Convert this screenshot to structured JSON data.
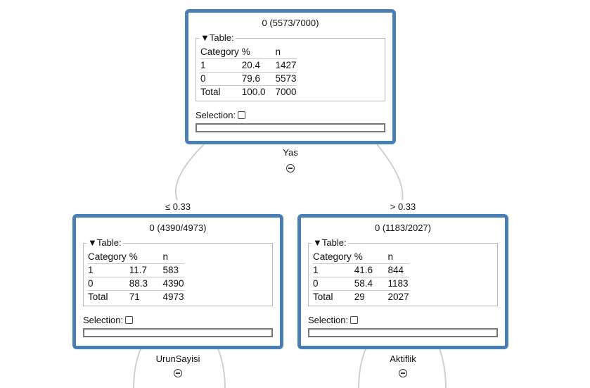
{
  "tree": {
    "table_legend": "▼Table:",
    "columns": [
      "Category",
      "%",
      "n"
    ],
    "selection_label": "Selection:",
    "root": {
      "title": "0 (5573/7000)",
      "rows": [
        {
          "category": "1",
          "pct": "20.4",
          "n": "1427"
        },
        {
          "category": "0",
          "pct": "79.6",
          "n": "5573"
        },
        {
          "category": "Total",
          "pct": "100.0",
          "n": "7000"
        }
      ],
      "split_variable": "Yas"
    },
    "left": {
      "edge_label": "≤ 0.33",
      "title": "0 (4390/4973)",
      "rows": [
        {
          "category": "1",
          "pct": "11.7",
          "n": "583"
        },
        {
          "category": "0",
          "pct": "88.3",
          "n": "4390"
        },
        {
          "category": "Total",
          "pct": "71",
          "n": "4973"
        }
      ],
      "split_variable": "UrunSayisi"
    },
    "right": {
      "edge_label": "> 0.33",
      "title": "0 (1183/2027)",
      "rows": [
        {
          "category": "1",
          "pct": "41.6",
          "n": "844"
        },
        {
          "category": "0",
          "pct": "58.4",
          "n": "1183"
        },
        {
          "category": "Total",
          "pct": "29",
          "n": "2027"
        }
      ],
      "split_variable": "Aktiflik"
    }
  },
  "colors": {
    "node_border": "#4a7fb5",
    "edge": "#cfcfcf"
  }
}
